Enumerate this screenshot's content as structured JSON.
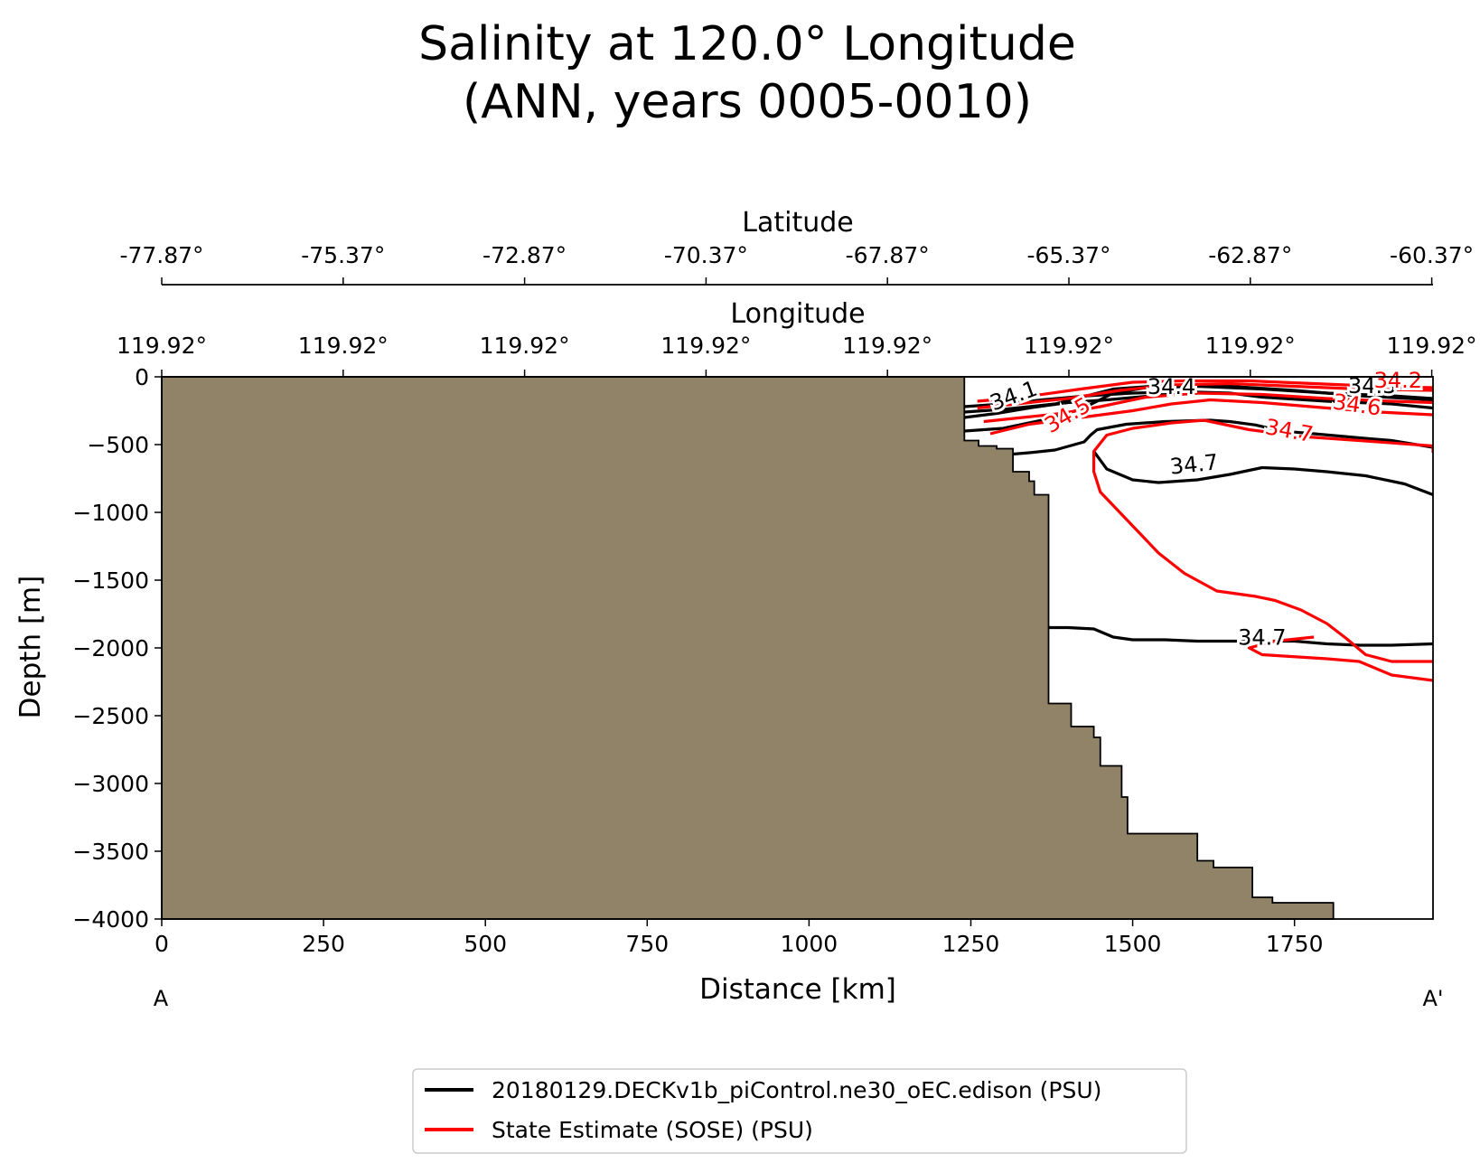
{
  "chart_data": {
    "type": "contour",
    "title_line1": "Salinity at 120.0° Longitude",
    "title_line2": "(ANN, years 0005-0010)",
    "xlabel": "Distance [km]",
    "ylabel": "Depth [m]",
    "xlim": [
      0,
      1964
    ],
    "ylim": [
      -4000,
      0
    ],
    "x_ticks": [
      "0",
      "250",
      "500",
      "750",
      "1000",
      "1250",
      "1500",
      "1750"
    ],
    "y_ticks": [
      "0",
      "−500",
      "−1000",
      "−1500",
      "−2000",
      "−2500",
      "−3000",
      "−3500",
      "−4000"
    ],
    "top_axes": [
      {
        "label": "Latitude",
        "ticks": [
          "-77.87°",
          "-75.37°",
          "-72.87°",
          "-70.37°",
          "-67.87°",
          "-65.37°",
          "-62.87°",
          "-60.37°"
        ]
      },
      {
        "label": "Longitude",
        "ticks": [
          "119.92°",
          "119.92°",
          "119.92°",
          "119.92°",
          "119.92°",
          "119.92°",
          "119.92°",
          "119.92°"
        ]
      }
    ],
    "section_start": "A",
    "section_end": "A'",
    "land_color": "#918368",
    "bathymetry": [
      [
        0,
        0
      ],
      [
        1240,
        0
      ],
      [
        1240,
        -470
      ],
      [
        1262,
        -470
      ],
      [
        1262,
        -510
      ],
      [
        1290,
        -510
      ],
      [
        1290,
        -530
      ],
      [
        1315,
        -530
      ],
      [
        1315,
        -700
      ],
      [
        1340,
        -700
      ],
      [
        1340,
        -770
      ],
      [
        1348,
        -770
      ],
      [
        1348,
        -870
      ],
      [
        1370,
        -870
      ],
      [
        1370,
        -2410
      ],
      [
        1405,
        -2410
      ],
      [
        1405,
        -2580
      ],
      [
        1440,
        -2580
      ],
      [
        1440,
        -2660
      ],
      [
        1450,
        -2660
      ],
      [
        1450,
        -2870
      ],
      [
        1483,
        -2870
      ],
      [
        1483,
        -3100
      ],
      [
        1492,
        -3100
      ],
      [
        1492,
        -3370
      ],
      [
        1600,
        -3370
      ],
      [
        1600,
        -3570
      ],
      [
        1625,
        -3570
      ],
      [
        1625,
        -3620
      ],
      [
        1685,
        -3620
      ],
      [
        1685,
        -3840
      ],
      [
        1716,
        -3840
      ],
      [
        1716,
        -3880
      ],
      [
        1810,
        -3880
      ],
      [
        1810,
        -4000
      ],
      [
        0,
        -4000
      ]
    ],
    "series": [
      {
        "name": "20180129.DECKv1b_piControl.ne30_oEC.edison (PSU)",
        "color": "#000000",
        "contours": [
          {
            "label": "34.7",
            "points": [
              [
                1370,
                -1850
              ],
              [
                1400,
                -1850
              ],
              [
                1440,
                -1860
              ],
              [
                1470,
                -1920
              ],
              [
                1500,
                -1940
              ],
              [
                1550,
                -1940
              ],
              [
                1600,
                -1950
              ],
              [
                1680,
                -1950
              ],
              [
                1750,
                -1950
              ],
              [
                1800,
                -1970
              ],
              [
                1850,
                -1980
              ],
              [
                1900,
                -1980
              ],
              [
                1964,
                -1970
              ]
            ]
          },
          {
            "label": "34.7",
            "points": [
              [
                1290,
                -580
              ],
              [
                1340,
                -560
              ],
              [
                1380,
                -540
              ],
              [
                1425,
                -480
              ],
              [
                1435,
                -430
              ],
              [
                1445,
                -390
              ],
              [
                1490,
                -350
              ],
              [
                1550,
                -330
              ],
              [
                1620,
                -320
              ],
              [
                1650,
                -330
              ],
              [
                1690,
                -355
              ],
              [
                1730,
                -400
              ],
              [
                1780,
                -420
              ],
              [
                1850,
                -450
              ],
              [
                1900,
                -470
              ],
              [
                1964,
                -520
              ]
            ]
          },
          {
            "label": "34.7",
            "points": [
              [
                1440,
                -550
              ],
              [
                1460,
                -680
              ],
              [
                1500,
                -760
              ],
              [
                1540,
                -780
              ],
              [
                1600,
                -760
              ],
              [
                1650,
                -720
              ],
              [
                1700,
                -670
              ],
              [
                1750,
                -680
              ],
              [
                1800,
                -700
              ],
              [
                1860,
                -730
              ],
              [
                1920,
                -790
              ],
              [
                1964,
                -870
              ]
            ]
          },
          {
            "label": "34.6",
            "points": [
              [
                1240,
                -220
              ],
              [
                1300,
                -200
              ],
              [
                1360,
                -170
              ],
              [
                1430,
                -140
              ],
              [
                1500,
                -120
              ],
              [
                1580,
                -110
              ],
              [
                1650,
                -120
              ],
              [
                1700,
                -150
              ],
              [
                1800,
                -180
              ],
              [
                1900,
                -200
              ],
              [
                1964,
                -230
              ]
            ]
          },
          {
            "label": "34.4",
            "points": [
              [
                1240,
                -300
              ],
              [
                1290,
                -270
              ],
              [
                1340,
                -230
              ],
              [
                1400,
                -190
              ],
              [
                1460,
                -170
              ],
              [
                1530,
                -140
              ],
              [
                1600,
                -120
              ]
            ]
          },
          {
            "label": "34.1",
            "points": [
              [
                1240,
                -400
              ],
              [
                1300,
                -380
              ],
              [
                1360,
                -320
              ],
              [
                1420,
                -240
              ],
              [
                1470,
                -120
              ],
              [
                1520,
                -80
              ],
              [
                1600,
                -70
              ],
              [
                1700,
                -90
              ],
              [
                1800,
                -120
              ],
              [
                1900,
                -140
              ],
              [
                1964,
                -160
              ]
            ]
          },
          {
            "label": "34.4",
            "points": [
              [
                1240,
                -260
              ],
              [
                1300,
                -240
              ],
              [
                1380,
                -200
              ],
              [
                1470,
                -90
              ],
              [
                1560,
                -60
              ],
              [
                1650,
                -70
              ],
              [
                1750,
                -100
              ],
              [
                1850,
                -140
              ],
              [
                1964,
                -170
              ]
            ]
          }
        ]
      },
      {
        "name": "State Estimate (SOSE) (PSU)",
        "color": "#ff0000",
        "contours": [
          {
            "label": "34.7",
            "points": [
              [
                1610,
                -320
              ],
              [
                1560,
                -340
              ],
              [
                1500,
                -380
              ],
              [
                1460,
                -430
              ],
              [
                1440,
                -550
              ],
              [
                1440,
                -700
              ],
              [
                1450,
                -850
              ],
              [
                1480,
                -1000
              ],
              [
                1510,
                -1150
              ],
              [
                1540,
                -1300
              ],
              [
                1580,
                -1450
              ],
              [
                1630,
                -1580
              ],
              [
                1690,
                -1620
              ],
              [
                1720,
                -1650
              ],
              [
                1760,
                -1720
              ],
              [
                1800,
                -1820
              ],
              [
                1830,
                -1930
              ],
              [
                1860,
                -2050
              ],
              [
                1900,
                -2100
              ],
              [
                1964,
                -2100
              ],
              [
                1980,
                -2200
              ],
              [
                1964,
                -2240
              ],
              [
                1900,
                -2200
              ],
              [
                1850,
                -2100
              ],
              [
                1800,
                -2080
              ],
              [
                1700,
                -2050
              ],
              [
                1680,
                -2000
              ],
              [
                1720,
                -1950
              ],
              [
                1780,
                -1920
              ]
            ]
          },
          {
            "label": "34.7",
            "points": [
              [
                1610,
                -320
              ],
              [
                1680,
                -390
              ],
              [
                1760,
                -440
              ],
              [
                1850,
                -470
              ],
              [
                1964,
                -510
              ],
              [
                1964,
                -560
              ]
            ]
          },
          {
            "label": "34.6",
            "points": [
              [
                1280,
                -420
              ],
              [
                1340,
                -350
              ],
              [
                1420,
                -300
              ],
              [
                1500,
                -250
              ],
              [
                1560,
                -200
              ],
              [
                1620,
                -170
              ],
              [
                1700,
                -190
              ],
              [
                1800,
                -230
              ],
              [
                1880,
                -260
              ],
              [
                1964,
                -280
              ]
            ]
          },
          {
            "label": "34.5",
            "points": [
              [
                1270,
                -330
              ],
              [
                1330,
                -300
              ],
              [
                1390,
                -270
              ],
              [
                1450,
                -220
              ],
              [
                1520,
                -150
              ],
              [
                1600,
                -120
              ],
              [
                1700,
                -130
              ],
              [
                1800,
                -160
              ],
              [
                1900,
                -180
              ],
              [
                1964,
                -190
              ]
            ]
          },
          {
            "label": "34.3",
            "points": [
              [
                1260,
                -230
              ],
              [
                1320,
                -200
              ],
              [
                1400,
                -160
              ],
              [
                1480,
                -100
              ],
              [
                1560,
                -60
              ],
              [
                1650,
                -50
              ],
              [
                1750,
                -70
              ],
              [
                1850,
                -90
              ],
              [
                1964,
                -100
              ]
            ]
          },
          {
            "label": "34.2",
            "points": [
              [
                1260,
                -180
              ],
              [
                1330,
                -150
              ],
              [
                1420,
                -90
              ],
              [
                1500,
                -40
              ],
              [
                1580,
                -30
              ],
              [
                1680,
                -30
              ],
              [
                1780,
                -50
              ],
              [
                1880,
                -70
              ],
              [
                1964,
                -80
              ]
            ]
          }
        ]
      }
    ],
    "legend": {
      "placement": "bottom-center",
      "entries": [
        "20180129.DECKv1b_piControl.ne30_oEC.edison (PSU)",
        "State Estimate (SOSE) (PSU)"
      ]
    },
    "contour_labels": [
      {
        "text": "34.7",
        "x": 1700,
        "y": -1975,
        "color": "#000000",
        "rot": 0
      },
      {
        "text": "34.7",
        "x": 1596,
        "y": -700,
        "color": "#000000",
        "rot": -6
      },
      {
        "text": "34.7",
        "x": 1740,
        "y": -450,
        "color": "#ff0000",
        "rot": 10
      },
      {
        "text": "34.6",
        "x": 1845,
        "y": -260,
        "color": "#ff0000",
        "rot": 8
      },
      {
        "text": "34.5",
        "x": 1405,
        "y": -330,
        "color": "#ff0000",
        "rot": -30
      },
      {
        "text": "34.3",
        "x": 1870,
        "y": -120,
        "color": "#000000",
        "rot": 0
      },
      {
        "text": "34.4",
        "x": 1560,
        "y": -125,
        "color": "#000000",
        "rot": 0
      },
      {
        "text": "34.1",
        "x": 1320,
        "y": -190,
        "color": "#000000",
        "rot": -20
      },
      {
        "text": "34.2",
        "x": 1910,
        "y": -80,
        "color": "#ff0000",
        "rot": 0
      }
    ]
  }
}
